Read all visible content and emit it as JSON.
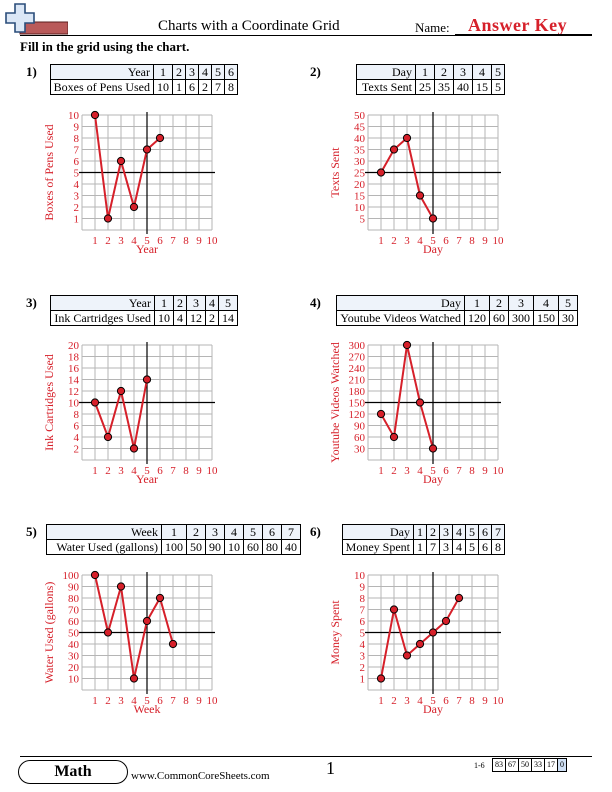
{
  "header": {
    "title": "Charts with a Coordinate Grid",
    "name_label": "Name:",
    "answer_key": "Answer Key",
    "instructions": "Fill in the grid using the chart."
  },
  "problems": [
    {
      "number": "1)",
      "x_label": "Year",
      "y_label": "Boxes of Pens Used",
      "x_values": [
        "1",
        "2",
        "3",
        "4",
        "5",
        "6"
      ],
      "y_values": [
        "10",
        "1",
        "6",
        "2",
        "7",
        "8"
      ]
    },
    {
      "number": "2)",
      "x_label": "Day",
      "y_label": "Texts Sent",
      "x_values": [
        "1",
        "2",
        "3",
        "4",
        "5"
      ],
      "y_values": [
        "25",
        "35",
        "40",
        "15",
        "5"
      ]
    },
    {
      "number": "3)",
      "x_label": "Year",
      "y_label": "Ink Cartridges Used",
      "x_values": [
        "1",
        "2",
        "3",
        "4",
        "5"
      ],
      "y_values": [
        "10",
        "4",
        "12",
        "2",
        "14"
      ]
    },
    {
      "number": "4)",
      "x_label": "Day",
      "y_label": "Youtube Videos Watched",
      "x_values": [
        "1",
        "2",
        "3",
        "4",
        "5"
      ],
      "y_values": [
        "120",
        "60",
        "300",
        "150",
        "30"
      ]
    },
    {
      "number": "5)",
      "x_label": "Week",
      "y_label": "Water Used (gallons)",
      "x_values": [
        "1",
        "2",
        "3",
        "4",
        "5",
        "6",
        "7"
      ],
      "y_values": [
        "100",
        "50",
        "90",
        "10",
        "60",
        "80",
        "40"
      ]
    },
    {
      "number": "6)",
      "x_label": "Day",
      "y_label": "Money Spent",
      "x_values": [
        "1",
        "2",
        "3",
        "4",
        "5",
        "6",
        "7"
      ],
      "y_values": [
        "1",
        "7",
        "3",
        "4",
        "5",
        "6",
        "8"
      ]
    }
  ],
  "chart_data": [
    {
      "type": "line",
      "x": [
        1,
        2,
        3,
        4,
        5,
        6
      ],
      "y": [
        10,
        1,
        6,
        2,
        7,
        8
      ],
      "xlabel": "Year",
      "ylabel": "Boxes of Pens Used",
      "xlim": [
        0,
        10
      ],
      "ylim": [
        0,
        10
      ],
      "x_ticks": [
        1,
        2,
        3,
        4,
        5,
        6,
        7,
        8,
        9,
        10
      ],
      "y_ticks": [
        1,
        2,
        3,
        4,
        5,
        6,
        7,
        8,
        9,
        10
      ],
      "axis_cross": [
        5,
        5
      ],
      "grid": true
    },
    {
      "type": "line",
      "x": [
        1,
        2,
        3,
        4,
        5
      ],
      "y": [
        25,
        35,
        40,
        15,
        5
      ],
      "xlabel": "Day",
      "ylabel": "Texts Sent",
      "xlim": [
        0,
        10
      ],
      "ylim": [
        0,
        50
      ],
      "x_ticks": [
        1,
        2,
        3,
        4,
        5,
        6,
        7,
        8,
        9,
        10
      ],
      "y_ticks": [
        5,
        10,
        15,
        20,
        25,
        30,
        35,
        40,
        45,
        50
      ],
      "axis_cross": [
        5,
        25
      ],
      "grid": true
    },
    {
      "type": "line",
      "x": [
        1,
        2,
        3,
        4,
        5
      ],
      "y": [
        10,
        4,
        12,
        2,
        14
      ],
      "xlabel": "Year",
      "ylabel": "Ink Cartridges Used",
      "xlim": [
        0,
        10
      ],
      "ylim": [
        0,
        20
      ],
      "x_ticks": [
        1,
        2,
        3,
        4,
        5,
        6,
        7,
        8,
        9,
        10
      ],
      "y_ticks": [
        2,
        4,
        6,
        8,
        10,
        12,
        14,
        16,
        18,
        20
      ],
      "axis_cross": [
        5,
        10
      ],
      "grid": true
    },
    {
      "type": "line",
      "x": [
        1,
        2,
        3,
        4,
        5
      ],
      "y": [
        120,
        60,
        300,
        150,
        30
      ],
      "xlabel": "Day",
      "ylabel": "Youtube Videos Watched",
      "xlim": [
        0,
        10
      ],
      "ylim": [
        0,
        300
      ],
      "x_ticks": [
        1,
        2,
        3,
        4,
        5,
        6,
        7,
        8,
        9,
        10
      ],
      "y_ticks": [
        30,
        60,
        90,
        120,
        150,
        180,
        210,
        240,
        270,
        300
      ],
      "axis_cross": [
        5,
        150
      ],
      "grid": true
    },
    {
      "type": "line",
      "x": [
        1,
        2,
        3,
        4,
        5,
        6,
        7
      ],
      "y": [
        100,
        50,
        90,
        10,
        60,
        80,
        40
      ],
      "xlabel": "Week",
      "ylabel": "Water Used (gallons)",
      "xlim": [
        0,
        10
      ],
      "ylim": [
        0,
        100
      ],
      "x_ticks": [
        1,
        2,
        3,
        4,
        5,
        6,
        7,
        8,
        9,
        10
      ],
      "y_ticks": [
        10,
        20,
        30,
        40,
        50,
        60,
        70,
        80,
        90,
        100
      ],
      "axis_cross": [
        5,
        50
      ],
      "grid": true
    },
    {
      "type": "line",
      "x": [
        1,
        2,
        3,
        4,
        5,
        6,
        7
      ],
      "y": [
        1,
        7,
        3,
        4,
        5,
        6,
        8
      ],
      "xlabel": "Day",
      "ylabel": "Money Spent",
      "xlim": [
        0,
        10
      ],
      "ylim": [
        0,
        10
      ],
      "x_ticks": [
        1,
        2,
        3,
        4,
        5,
        6,
        7,
        8,
        9,
        10
      ],
      "y_ticks": [
        1,
        2,
        3,
        4,
        5,
        6,
        7,
        8,
        9,
        10
      ],
      "axis_cross": [
        5,
        5
      ],
      "grid": true
    }
  ],
  "colors": {
    "accent": "#d6202a",
    "grid": "#b5b5b5",
    "table_header": "#eef3fa"
  },
  "footer": {
    "subject": "Math",
    "site": "www.CommonCoreSheets.com",
    "page": "1",
    "range": "1-6",
    "scores": [
      "83",
      "67",
      "50",
      "33",
      "17",
      "0"
    ]
  }
}
